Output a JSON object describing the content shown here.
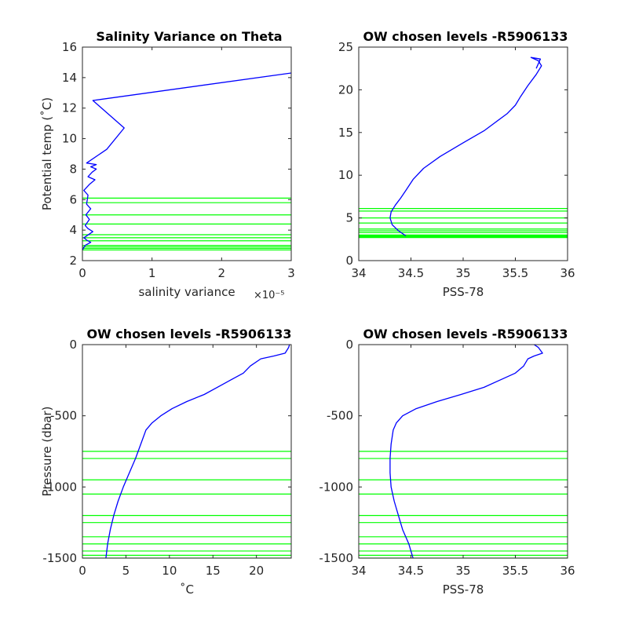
{
  "chart_data": [
    {
      "id": "ul",
      "type": "line",
      "title": "Salinity Variance on Theta",
      "xlabel": "salinity variance",
      "x_exponent": "×10⁻⁵",
      "ylabel": "Potential temp (˚C)",
      "xlim": [
        0,
        3
      ],
      "ylim": [
        2,
        16
      ],
      "xticks": [
        0,
        1,
        2,
        3
      ],
      "yticks": [
        2,
        4,
        6,
        8,
        10,
        12,
        14,
        16
      ],
      "series": [
        {
          "color": "#0000ff",
          "x": [
            0.0,
            0.04,
            0.12,
            0.06,
            0.02,
            0.15,
            0.08,
            0.04,
            0.1,
            0.05,
            0.12,
            0.06,
            0.08,
            0.02,
            0.1,
            0.18,
            0.08,
            0.14,
            0.2,
            0.12,
            0.2,
            0.06,
            0.35,
            0.6,
            0.15,
            3.0
          ],
          "y": [
            2.7,
            3.0,
            3.2,
            3.35,
            3.5,
            3.9,
            4.1,
            4.3,
            4.7,
            5.0,
            5.4,
            5.7,
            6.3,
            6.6,
            7.0,
            7.3,
            7.5,
            7.8,
            8.0,
            8.15,
            8.3,
            8.4,
            9.3,
            10.7,
            12.5,
            14.3
          ]
        }
      ],
      "hlines": {
        "color": "#00ff00",
        "values": [
          2.7,
          2.8,
          2.9,
          3.0,
          3.3,
          3.5,
          3.7,
          4.4,
          5.0,
          5.8,
          6.1
        ]
      }
    },
    {
      "id": "ur",
      "type": "line",
      "title": "OW chosen levels -R5906133",
      "xlabel": "PSS-78",
      "ylabel": "",
      "xlim": [
        34,
        36
      ],
      "ylim": [
        0,
        25
      ],
      "xticks": [
        34,
        34.5,
        35,
        35.5,
        36
      ],
      "xtick_labels": [
        "34",
        "34.5",
        "35",
        "35.5",
        "36"
      ],
      "yticks": [
        0,
        5,
        10,
        15,
        20,
        25
      ],
      "series": [
        {
          "color": "#0000ff",
          "x": [
            34.45,
            34.38,
            34.32,
            34.3,
            34.31,
            34.35,
            34.4,
            34.45,
            34.52,
            34.62,
            34.78,
            35.0,
            35.2,
            35.42,
            35.5,
            35.55,
            35.62,
            35.7,
            35.75,
            35.72,
            35.65,
            35.74,
            35.7
          ],
          "y": [
            2.9,
            3.5,
            4.2,
            5.0,
            5.7,
            6.5,
            7.3,
            8.2,
            9.5,
            10.8,
            12.2,
            13.8,
            15.2,
            17.2,
            18.2,
            19.2,
            20.5,
            21.8,
            22.8,
            23.4,
            23.8,
            23.6,
            22.5
          ]
        }
      ],
      "hlines": {
        "color": "#00ff00",
        "values": [
          2.7,
          2.8,
          2.9,
          3.0,
          3.3,
          3.5,
          3.7,
          4.4,
          5.0,
          5.8,
          6.1
        ]
      }
    },
    {
      "id": "ll",
      "type": "line",
      "title": "OW chosen levels -R5906133",
      "xlabel": "˚C",
      "ylabel": "Pressure (dbar)",
      "xlim": [
        0,
        24
      ],
      "ylim": [
        -1500,
        0
      ],
      "xticks": [
        0,
        5,
        10,
        15,
        20
      ],
      "yticks": [
        -1500,
        -1000,
        -500,
        0
      ],
      "series": [
        {
          "color": "#0000ff",
          "x": [
            2.7,
            2.9,
            3.2,
            3.6,
            4.1,
            4.7,
            5.4,
            6.1,
            6.7,
            7.3,
            8.0,
            9.0,
            10.3,
            12.0,
            14.0,
            15.5,
            17.0,
            18.5,
            19.3,
            20.5,
            22.0,
            23.3,
            23.7,
            23.8
          ],
          "y": [
            -1500,
            -1400,
            -1300,
            -1200,
            -1100,
            -1000,
            -900,
            -800,
            -700,
            -600,
            -550,
            -500,
            -450,
            -400,
            -350,
            -300,
            -250,
            -200,
            -150,
            -100,
            -80,
            -60,
            -20,
            0
          ]
        }
      ],
      "hlines": {
        "color": "#00ff00",
        "values": [
          -750,
          -800,
          -950,
          -1050,
          -1200,
          -1250,
          -1350,
          -1400,
          -1450,
          -1480,
          -1500
        ]
      }
    },
    {
      "id": "lr",
      "type": "line",
      "title": "OW chosen levels -R5906133",
      "xlabel": "PSS-78",
      "ylabel": "",
      "xlim": [
        34,
        36
      ],
      "ylim": [
        -1500,
        0
      ],
      "xticks": [
        34,
        34.5,
        35,
        35.5,
        36
      ],
      "xtick_labels": [
        "34",
        "34.5",
        "35",
        "35.5",
        "36"
      ],
      "yticks": [
        -1500,
        -1000,
        -500,
        0
      ],
      "series": [
        {
          "color": "#0000ff",
          "x": [
            34.52,
            34.48,
            34.42,
            34.38,
            34.34,
            34.31,
            34.3,
            34.3,
            34.31,
            34.33,
            34.36,
            34.42,
            34.55,
            34.75,
            34.98,
            35.2,
            35.35,
            35.5,
            35.58,
            35.62,
            35.68,
            35.76,
            35.72,
            35.68
          ],
          "y": [
            -1500,
            -1400,
            -1300,
            -1200,
            -1100,
            -1000,
            -900,
            -800,
            -700,
            -600,
            -550,
            -500,
            -450,
            -400,
            -350,
            -300,
            -250,
            -200,
            -150,
            -100,
            -80,
            -60,
            -20,
            0
          ]
        }
      ],
      "hlines": {
        "color": "#00ff00",
        "values": [
          -750,
          -800,
          -950,
          -1050,
          -1200,
          -1250,
          -1350,
          -1400,
          -1450,
          -1480,
          -1500
        ]
      }
    }
  ]
}
